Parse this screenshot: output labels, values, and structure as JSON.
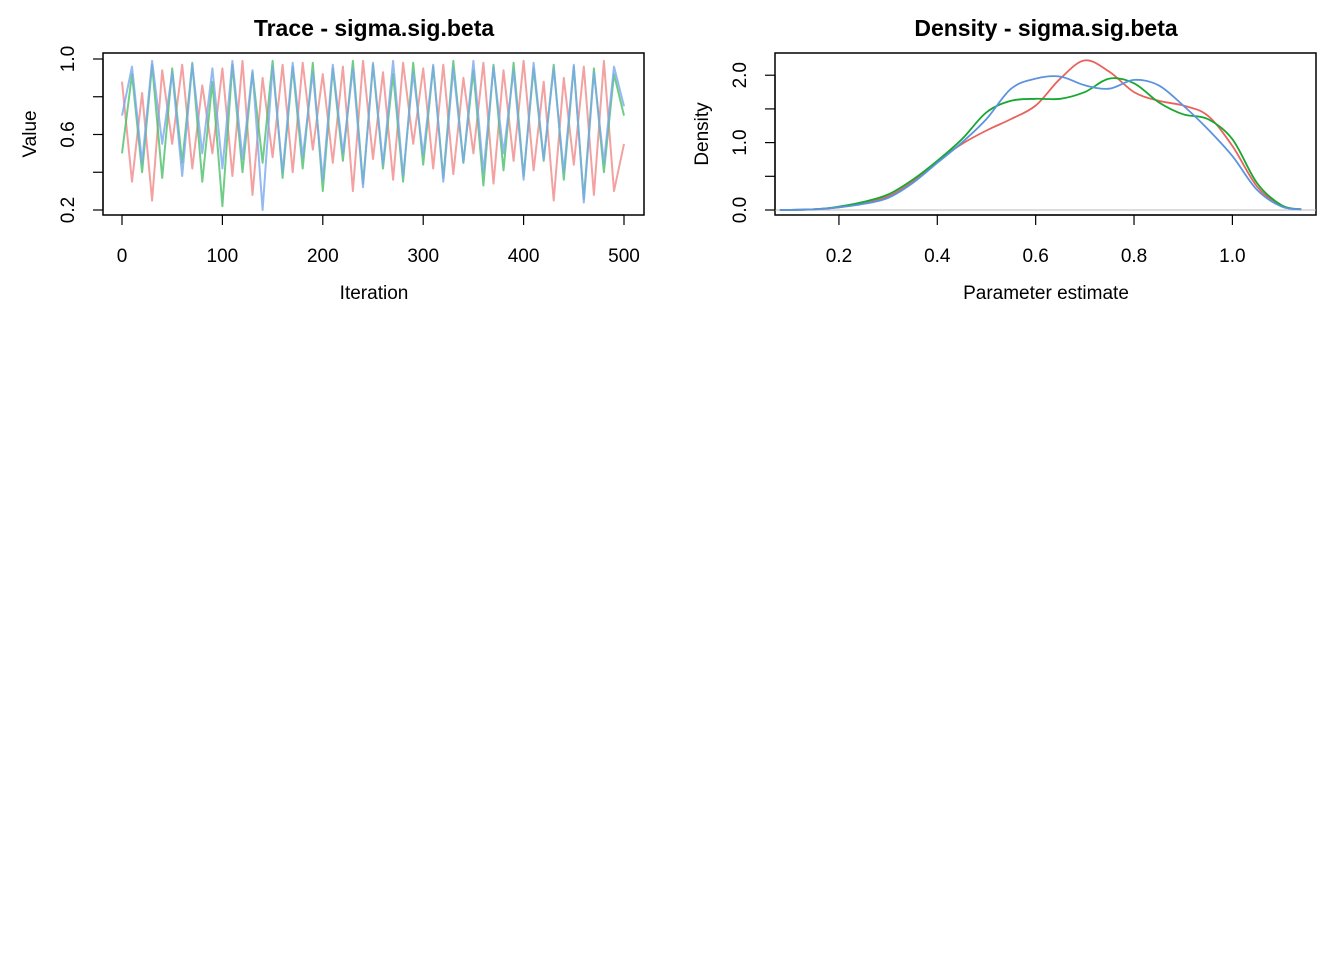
{
  "chart_data": [
    {
      "type": "line",
      "title": "Trace - sigma.sig.beta",
      "xlabel": "Iteration",
      "ylabel": "Value",
      "xlim": [
        0,
        500
      ],
      "ylim": [
        0.2,
        1.0
      ],
      "xticks": [
        "0",
        "100",
        "200",
        "300",
        "400",
        "500"
      ],
      "yticks": [
        "0.2",
        "0.6",
        "1.0"
      ],
      "grid": false,
      "legend": "none",
      "series": [
        {
          "color": "#f08a8a",
          "chain": 1
        },
        {
          "color": "#4cc06a",
          "chain": 2
        },
        {
          "color": "#7aa8ee",
          "chain": 3
        }
      ],
      "x_by_series": [
        [
          0,
          10,
          20,
          30,
          40,
          50,
          60,
          70,
          80,
          90,
          100,
          110,
          120,
          130,
          140,
          150,
          160,
          170,
          180,
          190,
          200,
          210,
          220,
          230,
          240,
          250,
          260,
          270,
          280,
          290,
          300,
          310,
          320,
          330,
          340,
          350,
          360,
          370,
          380,
          390,
          400,
          410,
          420,
          430,
          440,
          450,
          460,
          470,
          480,
          490,
          500
        ],
        [
          0,
          10,
          20,
          30,
          40,
          50,
          60,
          70,
          80,
          90,
          100,
          110,
          120,
          130,
          140,
          150,
          160,
          170,
          180,
          190,
          200,
          210,
          220,
          230,
          240,
          250,
          260,
          270,
          280,
          290,
          300,
          310,
          320,
          330,
          340,
          350,
          360,
          370,
          380,
          390,
          400,
          410,
          420,
          430,
          440,
          450,
          460,
          470,
          480,
          490,
          500
        ],
        [
          0,
          10,
          20,
          30,
          40,
          50,
          60,
          70,
          80,
          90,
          100,
          110,
          120,
          130,
          140,
          150,
          160,
          170,
          180,
          190,
          200,
          210,
          220,
          230,
          240,
          250,
          260,
          270,
          280,
          290,
          300,
          310,
          320,
          330,
          340,
          350,
          360,
          370,
          380,
          390,
          400,
          410,
          420,
          430,
          440,
          450,
          460,
          470,
          480,
          490,
          500
        ]
      ],
      "values_by_series": [
        [
          0.88,
          0.35,
          0.82,
          0.25,
          0.94,
          0.55,
          0.97,
          0.42,
          0.86,
          0.5,
          0.95,
          0.38,
          0.99,
          0.28,
          0.9,
          0.48,
          0.97,
          0.4,
          0.98,
          0.52,
          0.92,
          0.45,
          0.96,
          0.3,
          0.99,
          0.47,
          0.93,
          0.36,
          0.98,
          0.55,
          0.95,
          0.42,
          0.97,
          0.39,
          0.9,
          0.5,
          0.98,
          0.34,
          0.94,
          0.46,
          0.99,
          0.41,
          0.88,
          0.25,
          0.9,
          0.44,
          0.96,
          0.28,
          0.99,
          0.3,
          0.55
        ],
        [
          0.5,
          0.92,
          0.4,
          0.97,
          0.37,
          0.95,
          0.45,
          0.98,
          0.35,
          0.88,
          0.22,
          0.97,
          0.4,
          0.93,
          0.45,
          0.99,
          0.37,
          0.96,
          0.42,
          0.98,
          0.3,
          0.95,
          0.46,
          0.99,
          0.34,
          0.97,
          0.42,
          0.92,
          0.35,
          0.98,
          0.44,
          0.96,
          0.37,
          0.99,
          0.45,
          0.94,
          0.33,
          0.97,
          0.41,
          0.98,
          0.38,
          0.95,
          0.46,
          0.97,
          0.36,
          0.96,
          0.26,
          0.95,
          0.4,
          0.92,
          0.7
        ],
        [
          0.7,
          0.96,
          0.45,
          0.99,
          0.55,
          0.93,
          0.38,
          0.97,
          0.5,
          0.95,
          0.42,
          0.99,
          0.47,
          0.94,
          0.2,
          0.96,
          0.4,
          0.98,
          0.48,
          0.93,
          0.36,
          0.97,
          0.5,
          0.95,
          0.32,
          0.98,
          0.44,
          0.99,
          0.38,
          0.93,
          0.49,
          0.97,
          0.35,
          0.95,
          0.45,
          0.99,
          0.4,
          0.96,
          0.5,
          0.94,
          0.36,
          0.98,
          0.47,
          0.95,
          0.4,
          0.97,
          0.24,
          0.93,
          0.45,
          0.96,
          0.75
        ]
      ]
    },
    {
      "type": "line",
      "title": "Density - sigma.sig.beta",
      "xlabel": "Parameter estimate",
      "ylabel": "Density",
      "xlim": [
        0.07,
        1.17
      ],
      "ylim": [
        0,
        2.3
      ],
      "xticks": [
        "0.2",
        "0.4",
        "0.6",
        "0.8",
        "1.0"
      ],
      "yticks": [
        "0.0",
        "1.0",
        "2.0"
      ],
      "grid": false,
      "legend": "none",
      "zero_line": true,
      "series": [
        {
          "color": "#e8635e",
          "chain": 1
        },
        {
          "color": "#17a830",
          "chain": 2
        },
        {
          "color": "#5b93e0",
          "chain": 3
        }
      ],
      "x": [
        0.08,
        0.15,
        0.2,
        0.25,
        0.3,
        0.35,
        0.4,
        0.45,
        0.5,
        0.55,
        0.6,
        0.65,
        0.7,
        0.75,
        0.8,
        0.85,
        0.9,
        0.95,
        1.0,
        1.05,
        1.1,
        1.14
      ],
      "values_by_series": [
        [
          0.0,
          0.01,
          0.04,
          0.1,
          0.2,
          0.42,
          0.72,
          0.98,
          1.18,
          1.35,
          1.55,
          1.95,
          2.22,
          2.05,
          1.75,
          1.62,
          1.55,
          1.4,
          0.95,
          0.35,
          0.06,
          0.01
        ],
        [
          0.0,
          0.01,
          0.05,
          0.12,
          0.23,
          0.45,
          0.73,
          1.05,
          1.45,
          1.62,
          1.65,
          1.65,
          1.75,
          1.95,
          1.88,
          1.6,
          1.42,
          1.35,
          1.05,
          0.4,
          0.07,
          0.01
        ],
        [
          0.0,
          0.01,
          0.04,
          0.09,
          0.18,
          0.4,
          0.7,
          1.0,
          1.35,
          1.8,
          1.95,
          1.98,
          1.85,
          1.8,
          1.93,
          1.85,
          1.55,
          1.2,
          0.8,
          0.3,
          0.05,
          0.01
        ]
      ]
    }
  ]
}
